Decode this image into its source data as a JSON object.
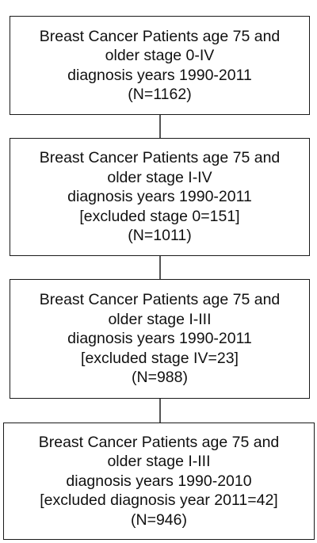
{
  "flowchart": {
    "boxes": [
      {
        "lines": [
          "Breast Cancer Patients age 75 and",
          "older stage 0-IV",
          "diagnosis years 1990-2011",
          "(N=1162)"
        ]
      },
      {
        "lines": [
          "Breast Cancer Patients age 75 and",
          "older stage I-IV",
          "diagnosis years 1990-2011",
          "[excluded stage 0=151]",
          "(N=1011)"
        ]
      },
      {
        "lines": [
          "Breast Cancer Patients age 75 and",
          "older stage I-III",
          "diagnosis years 1990-2011",
          "[excluded stage IV=23]",
          "(N=988)"
        ]
      },
      {
        "lines": [
          "Breast Cancer Patients age 75 and",
          "older stage I-III",
          "diagnosis years 1990-2010",
          "[excluded diagnosis year 2011=42]",
          "(N=946)"
        ]
      }
    ]
  }
}
